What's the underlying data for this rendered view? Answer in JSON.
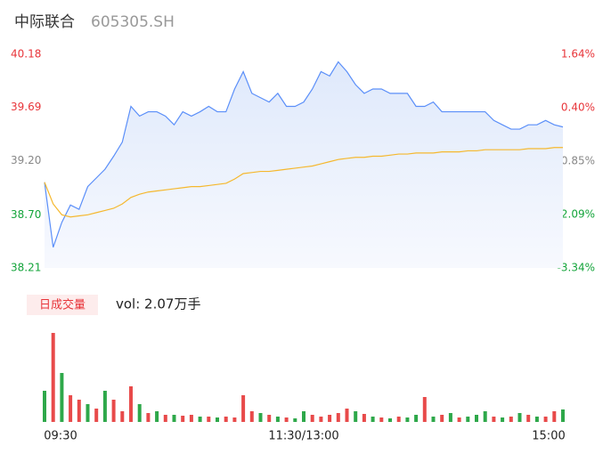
{
  "chart_data": {
    "type": "intraday",
    "title": "中际联合",
    "subtitle": "605305.SH",
    "categories": [
      "09:30",
      null,
      null,
      null,
      null,
      null,
      null,
      null,
      null,
      null,
      null,
      null,
      null,
      null,
      null,
      null,
      null,
      null,
      null,
      null,
      null,
      null,
      null,
      null,
      null,
      null,
      null,
      null,
      null,
      null,
      "11:30/13:00",
      null,
      null,
      null,
      null,
      null,
      null,
      null,
      null,
      null,
      null,
      null,
      null,
      null,
      null,
      null,
      null,
      null,
      null,
      null,
      null,
      null,
      null,
      null,
      null,
      null,
      null,
      null,
      null,
      null,
      "15:00"
    ],
    "series": [
      {
        "name": "price",
        "color": "#5b8ff9",
        "values": [
          39.0,
          38.4,
          38.63,
          38.79,
          38.75,
          38.96,
          39.04,
          39.12,
          39.24,
          39.37,
          39.7,
          39.61,
          39.65,
          39.65,
          39.61,
          39.53,
          39.65,
          39.61,
          39.65,
          39.7,
          39.65,
          39.65,
          39.86,
          40.02,
          39.82,
          39.78,
          39.74,
          39.82,
          39.7,
          39.7,
          39.74,
          39.86,
          40.02,
          39.98,
          40.11,
          40.02,
          39.9,
          39.82,
          39.86,
          39.86,
          39.82,
          39.82,
          39.82,
          39.7,
          39.7,
          39.74,
          39.65,
          39.65,
          39.65,
          39.65,
          39.65,
          39.65,
          39.57,
          39.53,
          39.49,
          39.49,
          39.53,
          39.53,
          39.57,
          39.53,
          39.51
        ]
      },
      {
        "name": "average",
        "color": "#f5b82e",
        "values": [
          39.0,
          38.8,
          38.7,
          38.68,
          38.69,
          38.7,
          38.72,
          38.74,
          38.76,
          38.8,
          38.86,
          38.89,
          38.91,
          38.92,
          38.93,
          38.94,
          38.95,
          38.96,
          38.96,
          38.97,
          38.98,
          38.99,
          39.03,
          39.08,
          39.09,
          39.1,
          39.1,
          39.11,
          39.12,
          39.13,
          39.14,
          39.15,
          39.17,
          39.19,
          39.21,
          39.22,
          39.23,
          39.23,
          39.24,
          39.24,
          39.25,
          39.26,
          39.26,
          39.27,
          39.27,
          39.27,
          39.28,
          39.28,
          39.28,
          39.29,
          39.29,
          39.3,
          39.3,
          39.3,
          39.3,
          39.3,
          39.31,
          39.31,
          39.31,
          39.32,
          39.32
        ]
      }
    ],
    "volume": {
      "title": "日成交量",
      "label": "vol: 2.07万手",
      "values": [
        35,
        100,
        55,
        30,
        25,
        20,
        15,
        35,
        25,
        12,
        40,
        20,
        10,
        12,
        8,
        8,
        7,
        8,
        6,
        6,
        5,
        6,
        5,
        30,
        12,
        10,
        8,
        6,
        5,
        4,
        12,
        8,
        6,
        8,
        10,
        15,
        12,
        9,
        6,
        5,
        4,
        6,
        5,
        8,
        28,
        6,
        8,
        10,
        5,
        6,
        8,
        12,
        6,
        5,
        6,
        10,
        8,
        6,
        6,
        12,
        14
      ],
      "colors": [
        "#2ea84a",
        "#e84a4a",
        "#2ea84a",
        "#e84a4a",
        "#e84a4a",
        "#2ea84a",
        "#e84a4a",
        "#2ea84a",
        "#e84a4a",
        "#e84a4a",
        "#e84a4a",
        "#2ea84a",
        "#e84a4a",
        "#2ea84a",
        "#e84a4a",
        "#2ea84a",
        "#e84a4a",
        "#e84a4a",
        "#2ea84a",
        "#e84a4a",
        "#2ea84a",
        "#e84a4a",
        "#e84a4a",
        "#e84a4a",
        "#e84a4a",
        "#2ea84a",
        "#e84a4a",
        "#2ea84a",
        "#e84a4a",
        "#2ea84a",
        "#2ea84a",
        "#e84a4a",
        "#e84a4a",
        "#e84a4a",
        "#e84a4a",
        "#e84a4a",
        "#2ea84a",
        "#e84a4a",
        "#2ea84a",
        "#e84a4a",
        "#2ea84a",
        "#e84a4a",
        "#2ea84a",
        "#2ea84a",
        "#e84a4a",
        "#2ea84a",
        "#e84a4a",
        "#2ea84a",
        "#e84a4a",
        "#2ea84a",
        "#2ea84a",
        "#2ea84a",
        "#e84a4a",
        "#2ea84a",
        "#e84a4a",
        "#2ea84a",
        "#e84a4a",
        "#2ea84a",
        "#e84a4a",
        "#e84a4a",
        "#2ea84a"
      ]
    },
    "ylim": [
      38.21,
      40.18
    ],
    "yticks": [
      40.18,
      39.69,
      {
        "value": 39.2,
        "label": "39.20"
      },
      {
        "value": 38.7,
        "label": "38.70"
      },
      38.21
    ],
    "y2lim": [
      -3.34,
      1.64
    ],
    "y2ticks": [
      {
        "value": 1.64,
        "label": "1.64%"
      },
      {
        "value": 0.4,
        "label": "0.40%"
      },
      {
        "value": -0.85,
        "label": "-0.85%"
      },
      {
        "value": -2.09,
        "label": "-2.09%"
      },
      {
        "value": -3.34,
        "label": "-3.34%"
      }
    ],
    "tick_colors": [
      "#e8353a",
      "#e8353a",
      "#888888",
      "#13a43a",
      "#13a43a"
    ]
  }
}
